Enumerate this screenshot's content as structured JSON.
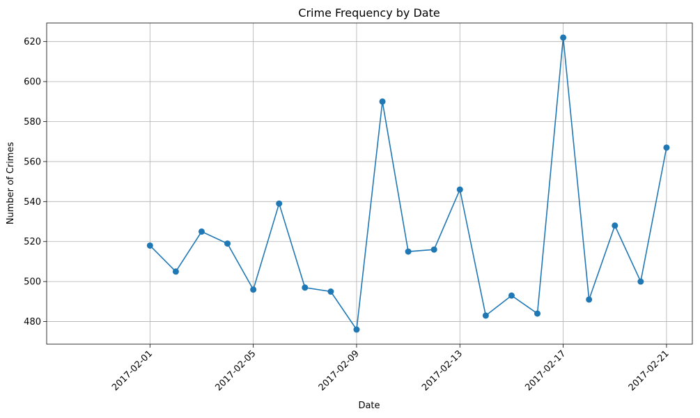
{
  "chart_data": {
    "type": "line",
    "title": "Crime Frequency by Date",
    "xlabel": "Date",
    "ylabel": "Number of Crimes",
    "x": [
      "2017-02-01",
      "2017-02-02",
      "2017-02-03",
      "2017-02-04",
      "2017-02-05",
      "2017-02-06",
      "2017-02-07",
      "2017-02-08",
      "2017-02-09",
      "2017-02-10",
      "2017-02-11",
      "2017-02-12",
      "2017-02-13",
      "2017-02-14",
      "2017-02-15",
      "2017-02-16",
      "2017-02-17",
      "2017-02-18",
      "2017-02-19",
      "2017-02-20",
      "2017-02-21"
    ],
    "series": [
      {
        "values": [
          518,
          505,
          525,
          519,
          496,
          539,
          497,
          495,
          476,
          590,
          515,
          516,
          546,
          483,
          493,
          484,
          622,
          491,
          528,
          500,
          567
        ],
        "color": "#1f77b4",
        "marker": "circle"
      }
    ],
    "xticks": [
      "2017-02-01",
      "2017-02-05",
      "2017-02-09",
      "2017-02-13",
      "2017-02-17",
      "2017-02-21"
    ],
    "xlim": [
      "2017-01-28",
      "2017-02-22"
    ],
    "yticks": [
      480,
      500,
      520,
      540,
      560,
      580,
      600,
      620
    ],
    "ylim": [
      468.7,
      629.3
    ],
    "grid": true,
    "x_tick_rotation": 45
  }
}
